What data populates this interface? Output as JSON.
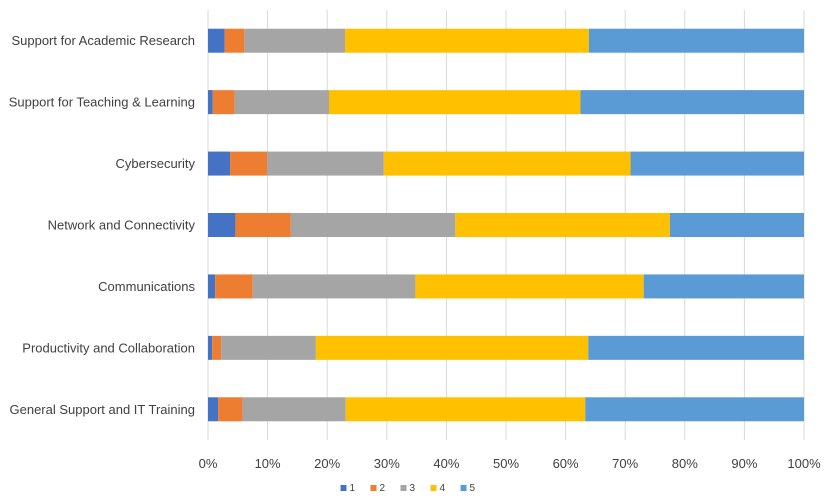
{
  "chart_data": {
    "type": "bar",
    "orientation": "horizontal",
    "stacked": "percent",
    "categories": [
      "Support for Academic Research",
      "Support for Teaching & Learning",
      "Cybersecurity",
      "Network and Connectivity",
      "Communications",
      "Productivity and Collaboration",
      "General Support and IT Training"
    ],
    "series": [
      {
        "name": "1",
        "color": "#4472c4",
        "values": [
          2.8,
          0.8,
          3.7,
          4.6,
          1.2,
          0.7,
          1.7
        ]
      },
      {
        "name": "2",
        "color": "#ed7d31",
        "values": [
          3.3,
          3.7,
          6.2,
          9.3,
          6.3,
          1.5,
          4.1
        ]
      },
      {
        "name": "3",
        "color": "#a5a5a5",
        "values": [
          16.9,
          15.8,
          19.6,
          27.6,
          27.3,
          15.9,
          17.3
        ]
      },
      {
        "name": "4",
        "color": "#ffc000",
        "values": [
          40.9,
          42.2,
          41.4,
          36.0,
          38.3,
          45.7,
          40.2
        ]
      },
      {
        "name": "5",
        "color": "#5b9bd5",
        "values": [
          36.1,
          37.5,
          29.1,
          22.5,
          26.9,
          36.2,
          36.7
        ]
      }
    ],
    "xticks": [
      "0%",
      "10%",
      "20%",
      "30%",
      "40%",
      "50%",
      "60%",
      "70%",
      "80%",
      "90%",
      "100%"
    ],
    "xlim": [
      0,
      100
    ],
    "grid": true,
    "legend": "bottom-center",
    "title": "",
    "xlabel": "",
    "ylabel": ""
  }
}
